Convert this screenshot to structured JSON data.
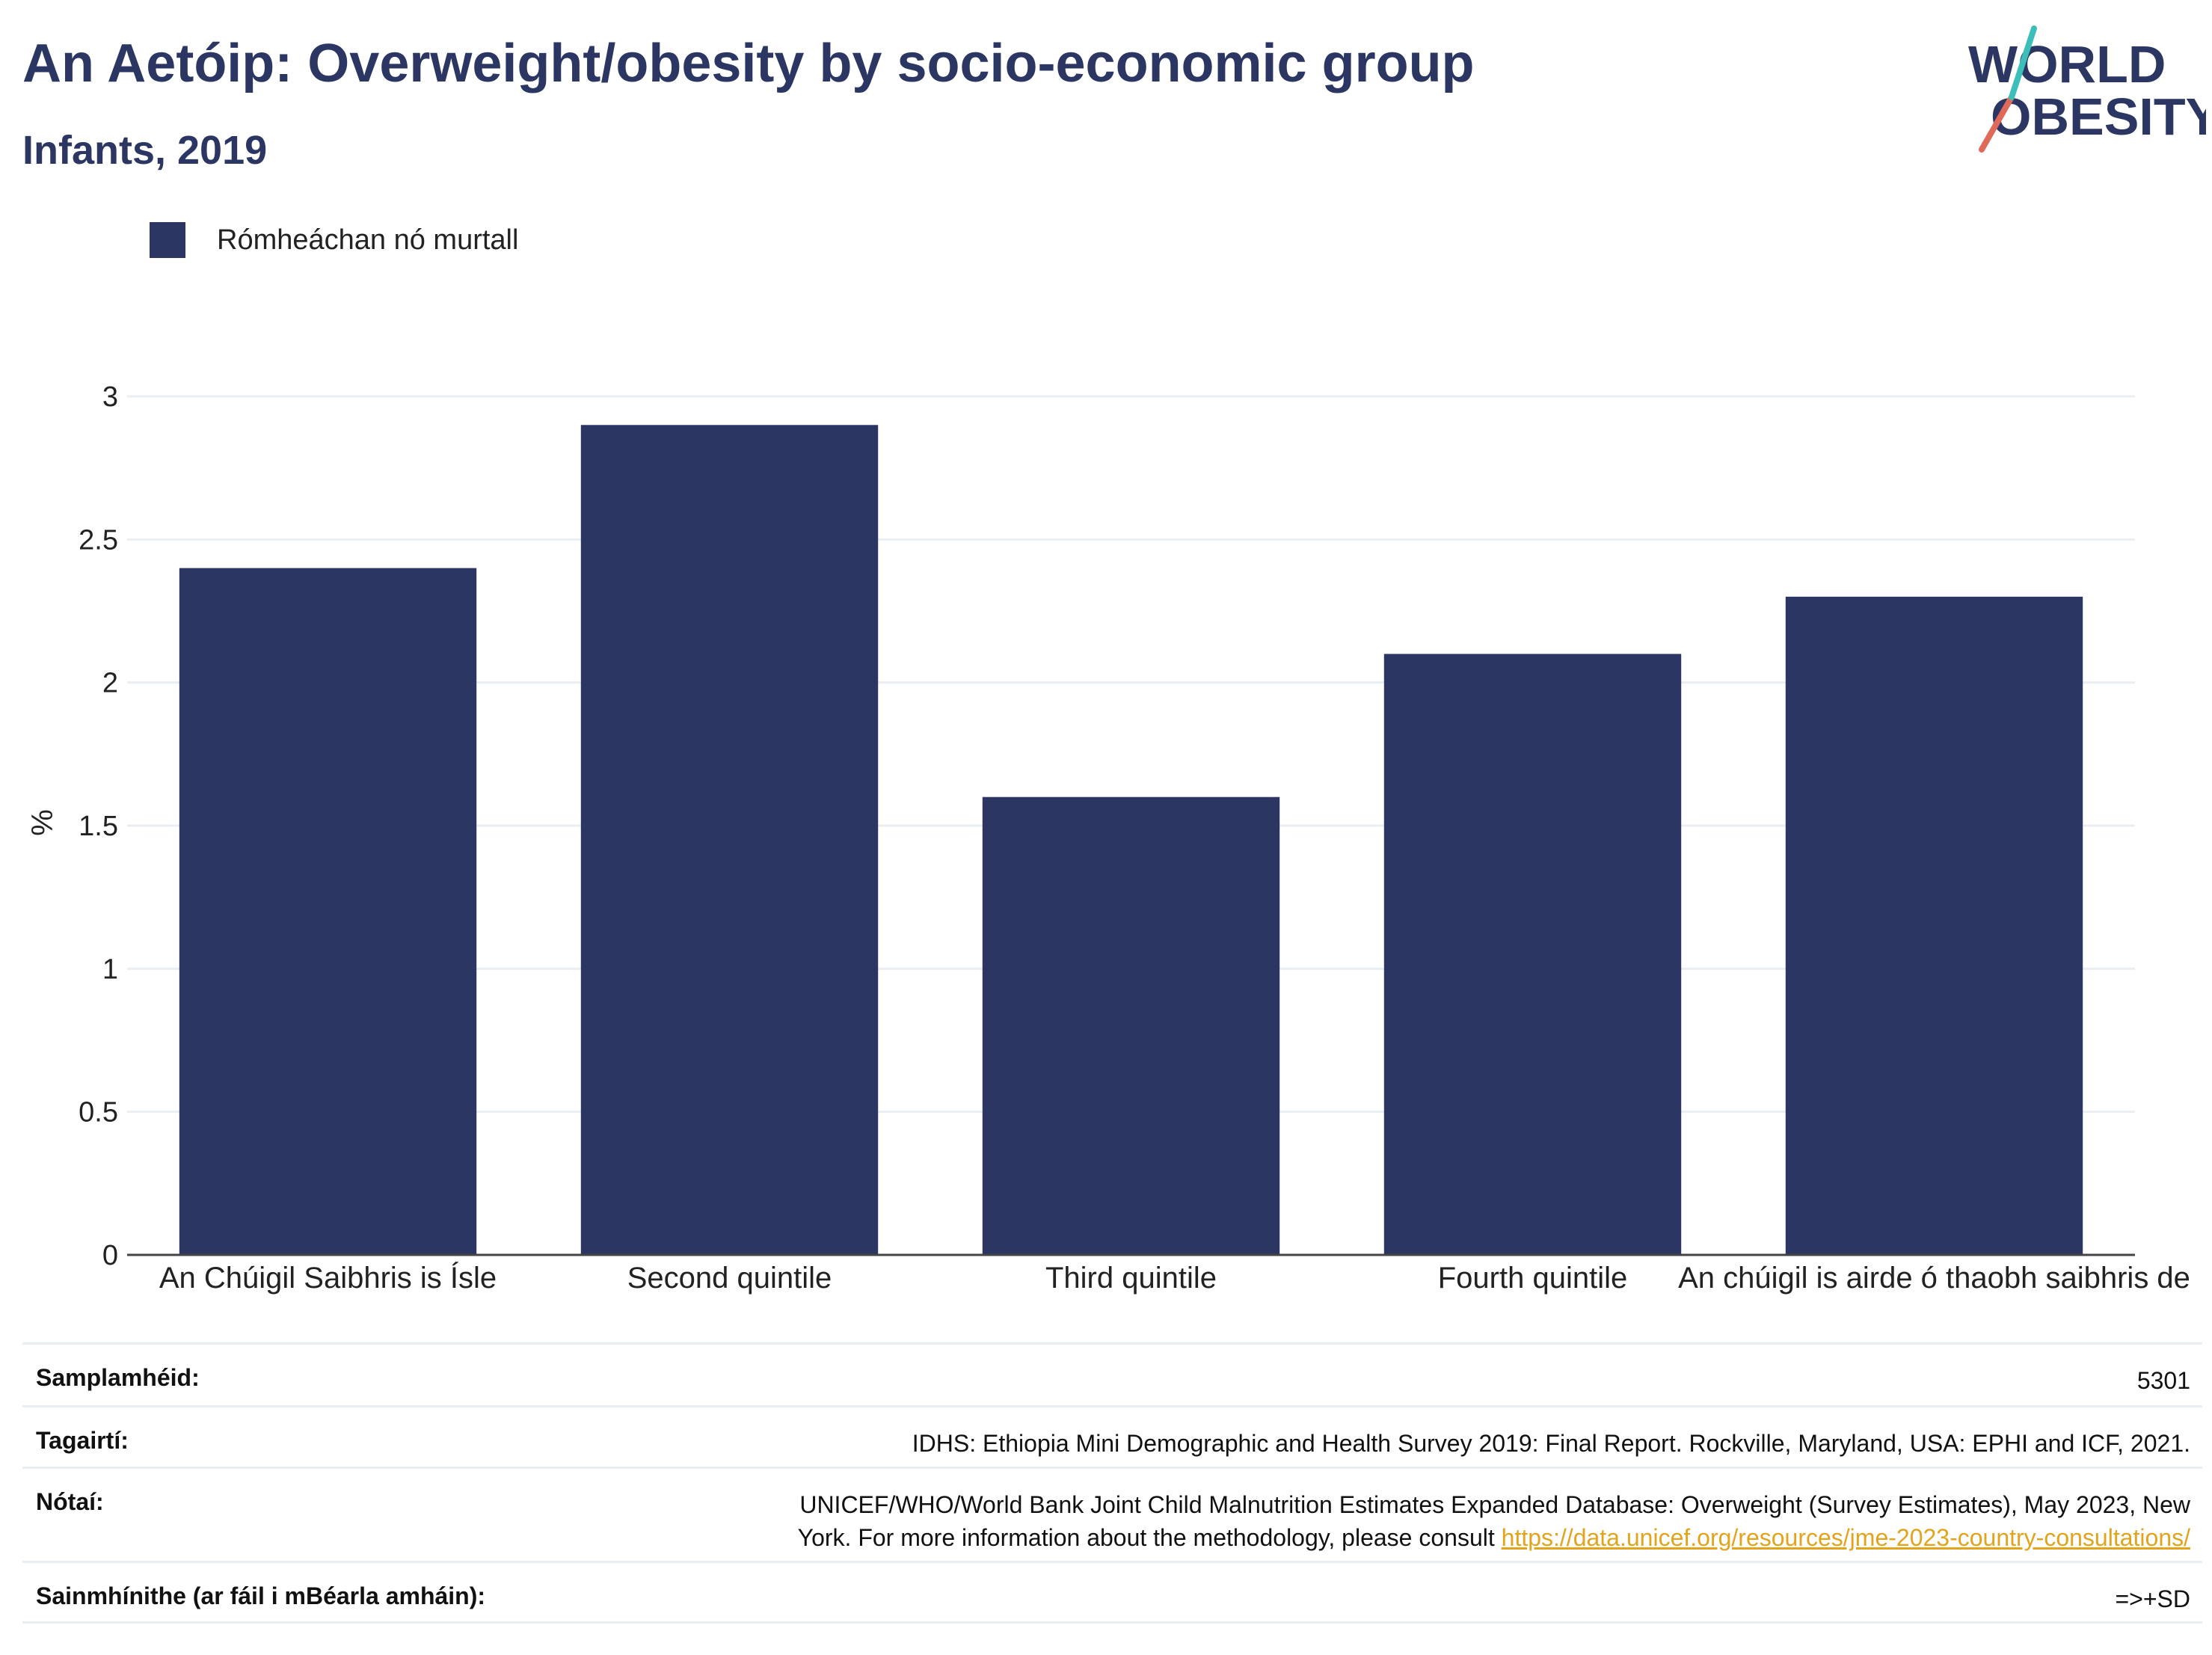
{
  "header": {
    "title": "An Aetóip: Overweight/obesity by socio-economic group",
    "subtitle": "Infants, 2019",
    "logo_line1": "WORLD",
    "logo_line2": "OBESITY"
  },
  "colors": {
    "bar": "#2b3663",
    "text": "#2b3663",
    "grid": "#e8eef2",
    "link": "#e2a41c",
    "logo_slash_red": "#e06a5a",
    "logo_slash_teal": "#3bbfb8"
  },
  "legend": {
    "label": "Rómheáchan nó murtall"
  },
  "chart_data": {
    "type": "bar",
    "title": "An Aetóip: Overweight/obesity by socio-economic group",
    "subtitle": "Infants, 2019",
    "categories": [
      "An Chúigil Saibhris is Ísle",
      "Second quintile",
      "Third quintile",
      "Fourth quintile",
      "An chúigil is airde ó thaobh saibhris de"
    ],
    "series": [
      {
        "name": "Rómheáchan nó murtall",
        "values": [
          2.4,
          2.9,
          1.6,
          2.1,
          2.3
        ]
      }
    ],
    "ylabel": "%",
    "ylim": [
      0,
      3
    ],
    "yticks": [
      "0",
      "0.5",
      "1",
      "1.5",
      "2",
      "2.5",
      "3"
    ],
    "grid": true,
    "legend_position": "top-left"
  },
  "meta": {
    "sample_label": "Samplamhéid:",
    "sample_value": "5301",
    "refs_label": "Tagairtí:",
    "refs_value": "IDHS: Ethiopia Mini Demographic and Health Survey 2019: Final Report. Rockville, Maryland, USA: EPHI and ICF, 2021.",
    "notes_label": "Nótaí:",
    "notes_text_line1": "UNICEF/WHO/World Bank Joint Child Malnutrition Estimates Expanded Database: Overweight (Survey Estimates), May 2023, New",
    "notes_text_line2": "York. For more information about the methodology, please consult",
    "notes_link": "https://data.unicef.org/resources/jme-2023-country-consultations/",
    "definitions_label": "Sainmhínithe (ar fáil i mBéarla amháin):",
    "definitions_value": "=>+SD"
  }
}
